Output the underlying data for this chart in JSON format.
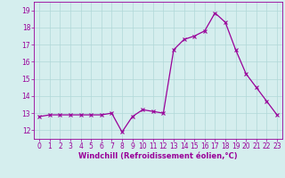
{
  "x": [
    0,
    1,
    2,
    3,
    4,
    5,
    6,
    7,
    8,
    9,
    10,
    11,
    12,
    13,
    14,
    15,
    16,
    17,
    18,
    19,
    20,
    21,
    22,
    23
  ],
  "y": [
    12.8,
    12.9,
    12.9,
    12.9,
    12.9,
    12.9,
    12.9,
    13.0,
    11.9,
    12.8,
    13.2,
    13.1,
    13.0,
    16.7,
    17.3,
    17.5,
    17.8,
    18.85,
    18.3,
    16.7,
    15.3,
    14.5,
    13.7,
    12.9
  ],
  "line_color": "#990099",
  "marker": "x",
  "marker_color": "#990099",
  "marker_size": 3,
  "marker_linewidth": 0.8,
  "line_width": 0.9,
  "background_color": "#d5eeee",
  "grid_color": "#b0d8d8",
  "xlabel": "Windchill (Refroidissement éolien,°C)",
  "xlabel_color": "#990099",
  "tick_color": "#990099",
  "ylim": [
    11.5,
    19.5
  ],
  "yticks": [
    12,
    13,
    14,
    15,
    16,
    17,
    18,
    19
  ],
  "xlim": [
    -0.5,
    23.5
  ],
  "xticks": [
    0,
    1,
    2,
    3,
    4,
    5,
    6,
    7,
    8,
    9,
    10,
    11,
    12,
    13,
    14,
    15,
    16,
    17,
    18,
    19,
    20,
    21,
    22,
    23
  ],
  "axis_fontsize": 5.5,
  "tick_fontsize": 5.5,
  "xlabel_fontsize": 6.0,
  "xlabel_fontweight": "bold"
}
